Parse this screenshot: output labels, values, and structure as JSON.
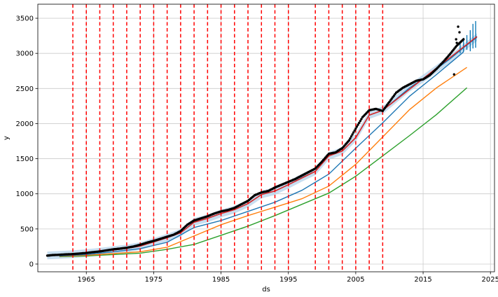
{
  "chart_data": {
    "type": "line",
    "title": "",
    "xlabel": "ds",
    "ylabel": "y",
    "xlim": [
      1957.8,
      2025.6
    ],
    "ylim": [
      -110,
      3700
    ],
    "x_ticks": [
      1965,
      1975,
      1985,
      1995,
      2005,
      2015,
      2025
    ],
    "x_tick_labels": [
      "1965",
      "1975",
      "1985",
      "1995",
      "2005",
      "2015",
      "2025"
    ],
    "y_ticks": [
      0,
      500,
      1000,
      1500,
      2000,
      2500,
      3000,
      3500
    ],
    "y_tick_labels": [
      "0",
      "500",
      "1000",
      "1500",
      "2000",
      "2500",
      "3000",
      "3500"
    ],
    "grid": true,
    "legend": "none",
    "changepoints": [
      1963,
      1965,
      1967,
      1969,
      1971,
      1973,
      1975,
      1977,
      1979,
      1981,
      1983,
      1985,
      1987,
      1989,
      1991,
      1993,
      1995,
      1999,
      2001,
      2003,
      2005,
      2007,
      2009
    ],
    "colors": {
      "observed": "#000000",
      "forecast": "#0072B2",
      "uncertainty": "#b9d6ec",
      "trend": "#d62728",
      "changepoint": "#ff0000",
      "line_blue": "#1f77b4",
      "line_orange": "#ff7f0e",
      "line_green": "#2ca02c"
    },
    "series": [
      {
        "role": "observed",
        "x": [
          1959.2,
          1960,
          1961,
          1962,
          1963,
          1964,
          1965,
          1966,
          1967,
          1968,
          1969,
          1970,
          1971,
          1972,
          1973,
          1974,
          1975,
          1976,
          1977,
          1978,
          1979,
          1980,
          1981,
          1982,
          1983,
          1984,
          1985,
          1986,
          1987,
          1988,
          1989,
          1990,
          1991,
          1992,
          1993,
          1994,
          1995,
          1996,
          1997,
          1998,
          1999,
          2000,
          2001,
          2002,
          2003,
          2004,
          2005,
          2006,
          2007,
          2008,
          2009,
          2010,
          2011,
          2012,
          2013,
          2014,
          2015,
          2016,
          2017,
          2018,
          2019,
          2020,
          2021
        ],
        "values": [
          120,
          128,
          132,
          138,
          142,
          150,
          158,
          170,
          180,
          195,
          210,
          220,
          232,
          250,
          275,
          305,
          330,
          360,
          390,
          420,
          470,
          560,
          620,
          650,
          680,
          720,
          750,
          770,
          800,
          850,
          900,
          980,
          1020,
          1040,
          1090,
          1130,
          1170,
          1210,
          1260,
          1310,
          1360,
          1460,
          1570,
          1590,
          1650,
          1760,
          1930,
          2090,
          2190,
          2210,
          2180,
          2310,
          2440,
          2510,
          2560,
          2610,
          2630,
          2690,
          2780,
          2880,
          2990,
          3110,
          3200
        ]
      },
      {
        "role": "forecast",
        "x": [
          1959.2,
          1961,
          1963,
          1965,
          1967,
          1969,
          1971,
          1973,
          1975,
          1977,
          1979,
          1981,
          1983,
          1985,
          1987,
          1989,
          1991,
          1993,
          1995,
          1997,
          1999,
          2001,
          2003,
          2005,
          2007,
          2009,
          2011,
          2013,
          2015,
          2017,
          2019,
          2021,
          2023
        ],
        "values": [
          123,
          130,
          140,
          155,
          175,
          198,
          222,
          255,
          315,
          375,
          445,
          600,
          650,
          720,
          775,
          860,
          990,
          1040,
          1130,
          1230,
          1320,
          1540,
          1610,
          1800,
          2120,
          2190,
          2350,
          2510,
          2640,
          2780,
          2920,
          3080,
          3230
        ],
        "band": 55
      },
      {
        "role": "trend",
        "x": [
          1959.2,
          1963,
          1965,
          1967,
          1969,
          1971,
          1973,
          1975,
          1977,
          1979,
          1981,
          1983,
          1985,
          1987,
          1989,
          1991,
          1993,
          1995,
          1999,
          2001,
          2003,
          2005,
          2007,
          2009,
          2023
        ],
        "values": [
          125,
          143,
          155,
          177,
          200,
          223,
          255,
          315,
          375,
          445,
          595,
          650,
          720,
          775,
          860,
          990,
          1040,
          1130,
          1320,
          1540,
          1610,
          1800,
          2120,
          2190,
          3240
        ]
      },
      {
        "role": "line_blue",
        "x": [
          1961,
          1965,
          1969,
          1973,
          1977,
          1981,
          1985,
          1989,
          1993,
          1997,
          2001,
          2005,
          2009,
          2013,
          2017,
          2021
        ],
        "values": [
          115,
          135,
          175,
          220,
          310,
          520,
          620,
          750,
          880,
          1050,
          1280,
          1650,
          2010,
          2390,
          2700,
          3020
        ]
      },
      {
        "role": "line_orange",
        "x": [
          1961,
          1965,
          1969,
          1973,
          1977,
          1981,
          1985,
          1989,
          1993,
          1997,
          2001,
          2005,
          2009,
          2013,
          2017,
          2021.5
        ],
        "values": [
          110,
          125,
          150,
          175,
          240,
          400,
          560,
          690,
          810,
          930,
          1110,
          1420,
          1810,
          2200,
          2510,
          2800
        ]
      },
      {
        "role": "line_green",
        "x": [
          1961,
          1965,
          1969,
          1973,
          1977,
          1981,
          1985,
          1989,
          1993,
          1997,
          2001,
          2005,
          2009,
          2013,
          2017,
          2021.5
        ],
        "values": [
          105,
          115,
          135,
          155,
          210,
          280,
          410,
          540,
          690,
          850,
          1010,
          1250,
          1540,
          1830,
          2130,
          2510
        ]
      }
    ]
  }
}
